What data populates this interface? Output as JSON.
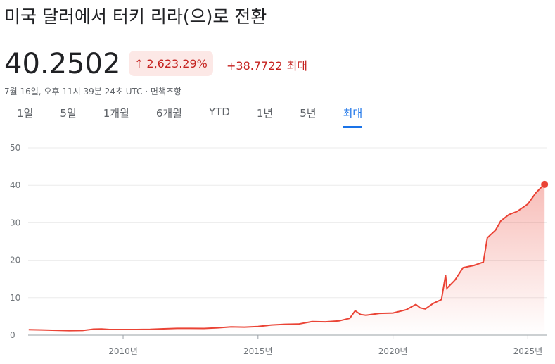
{
  "header": {
    "title": "미국 달러에서 터키 리라(으)로 전환",
    "price": "40.2502",
    "change_percent": "2,623.29%",
    "change_value": "+38.7722",
    "change_period": "최대",
    "timestamp": "7월 16일, 오후 11시 39분 24초 UTC · 면책조항",
    "tabs": [
      "1일",
      "5일",
      "1개월",
      "6개월",
      "YTD",
      "1년",
      "5년",
      "최대"
    ],
    "active_tab": 7
  },
  "chart_data": {
    "type": "line",
    "color": "#ea4335",
    "x": [
      2006.5,
      2007,
      2007.5,
      2008,
      2008.5,
      2008.9,
      2009.2,
      2009.5,
      2010,
      2010.5,
      2011,
      2011.5,
      2012,
      2012.5,
      2013,
      2013.5,
      2014,
      2014.5,
      2015,
      2015.5,
      2016,
      2016.5,
      2017,
      2017.5,
      2018,
      2018.4,
      2018.6,
      2018.8,
      2019,
      2019.5,
      2020,
      2020.5,
      2020.85,
      2021,
      2021.2,
      2021.5,
      2021.8,
      2021.95,
      2022,
      2022.3,
      2022.6,
      2023,
      2023.35,
      2023.5,
      2023.8,
      2024,
      2024.3,
      2024.6,
      2025,
      2025.3,
      2025.5,
      2025.62
    ],
    "values": [
      1.45,
      1.4,
      1.3,
      1.2,
      1.25,
      1.6,
      1.65,
      1.5,
      1.5,
      1.5,
      1.55,
      1.7,
      1.8,
      1.8,
      1.78,
      1.95,
      2.2,
      2.15,
      2.3,
      2.7,
      2.9,
      2.95,
      3.6,
      3.55,
      3.8,
      4.5,
      6.5,
      5.5,
      5.3,
      5.8,
      5.9,
      6.8,
      8.2,
      7.3,
      7.0,
      8.5,
      9.5,
      16,
      12.5,
      14.7,
      18,
      18.6,
      19.5,
      26,
      28,
      30.5,
      32.2,
      33,
      35,
      38,
      39.5,
      40.2502
    ],
    "xlim": [
      2006.48,
      2025.72
    ],
    "ylim": [
      0,
      50
    ],
    "xticks": [
      {
        "value": 2010,
        "label": "2010년"
      },
      {
        "value": 2015,
        "label": "2015년"
      },
      {
        "value": 2020,
        "label": "2020년"
      },
      {
        "value": 2025,
        "label": "2025년"
      }
    ],
    "yticks": [
      0,
      10,
      20,
      30,
      40,
      50
    ],
    "grid": true
  }
}
